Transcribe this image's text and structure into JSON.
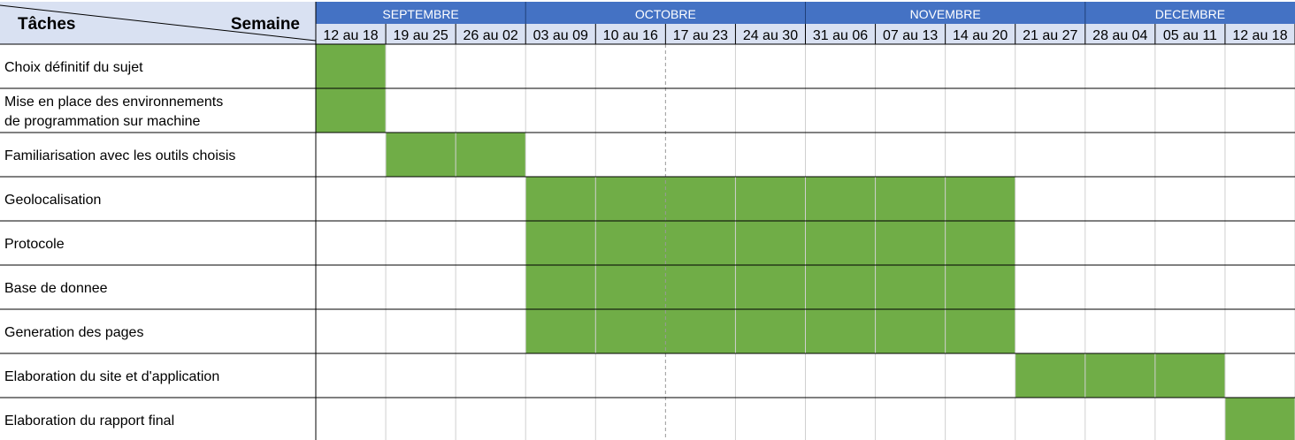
{
  "chart_data": {
    "type": "gantt",
    "corner": {
      "tasks_label": "Tâches",
      "week_label": "Semaine"
    },
    "months": [
      {
        "name": "SEPTEMBRE",
        "span": 3
      },
      {
        "name": "OCTOBRE",
        "span": 4
      },
      {
        "name": "NOVEMBRE",
        "span": 4
      },
      {
        "name": "DECEMBRE",
        "span": 3
      }
    ],
    "weeks": [
      "12 au 18",
      "19 au 25",
      "26 au 02",
      "03 au 09",
      "10 au 16",
      "17 au 23",
      "24 au 30",
      "31 au 06",
      "07 au 13",
      "14 au 20",
      "21 au 27",
      "28 au 04",
      "05 au 11",
      "12 au 18"
    ],
    "tasks": [
      {
        "lines": [
          "Choix définitif du sujet"
        ],
        "start": 0,
        "end": 0
      },
      {
        "lines": [
          "Mise en place des environnements",
          "de programmation sur machine"
        ],
        "start": 0,
        "end": 0
      },
      {
        "lines": [
          "Familiarisation avec les outils choisis"
        ],
        "start": 1,
        "end": 2
      },
      {
        "lines": [
          "Geolocalisation"
        ],
        "start": 3,
        "end": 9
      },
      {
        "lines": [
          "Protocole"
        ],
        "start": 3,
        "end": 9
      },
      {
        "lines": [
          "Base de donnee"
        ],
        "start": 3,
        "end": 9
      },
      {
        "lines": [
          "Generation des pages"
        ],
        "start": 3,
        "end": 9
      },
      {
        "lines": [
          "Elaboration du site et d'application"
        ],
        "start": 10,
        "end": 12
      },
      {
        "lines": [
          "Elaboration du rapport final"
        ],
        "start": 13,
        "end": 13
      }
    ],
    "colors": {
      "month_header": "#4472C4",
      "week_header": "#D9E1F2",
      "corner_header": "#D9E1F2",
      "bar": "#70AD47",
      "grid": "#D0D0D0",
      "row_border": "#000000"
    }
  }
}
